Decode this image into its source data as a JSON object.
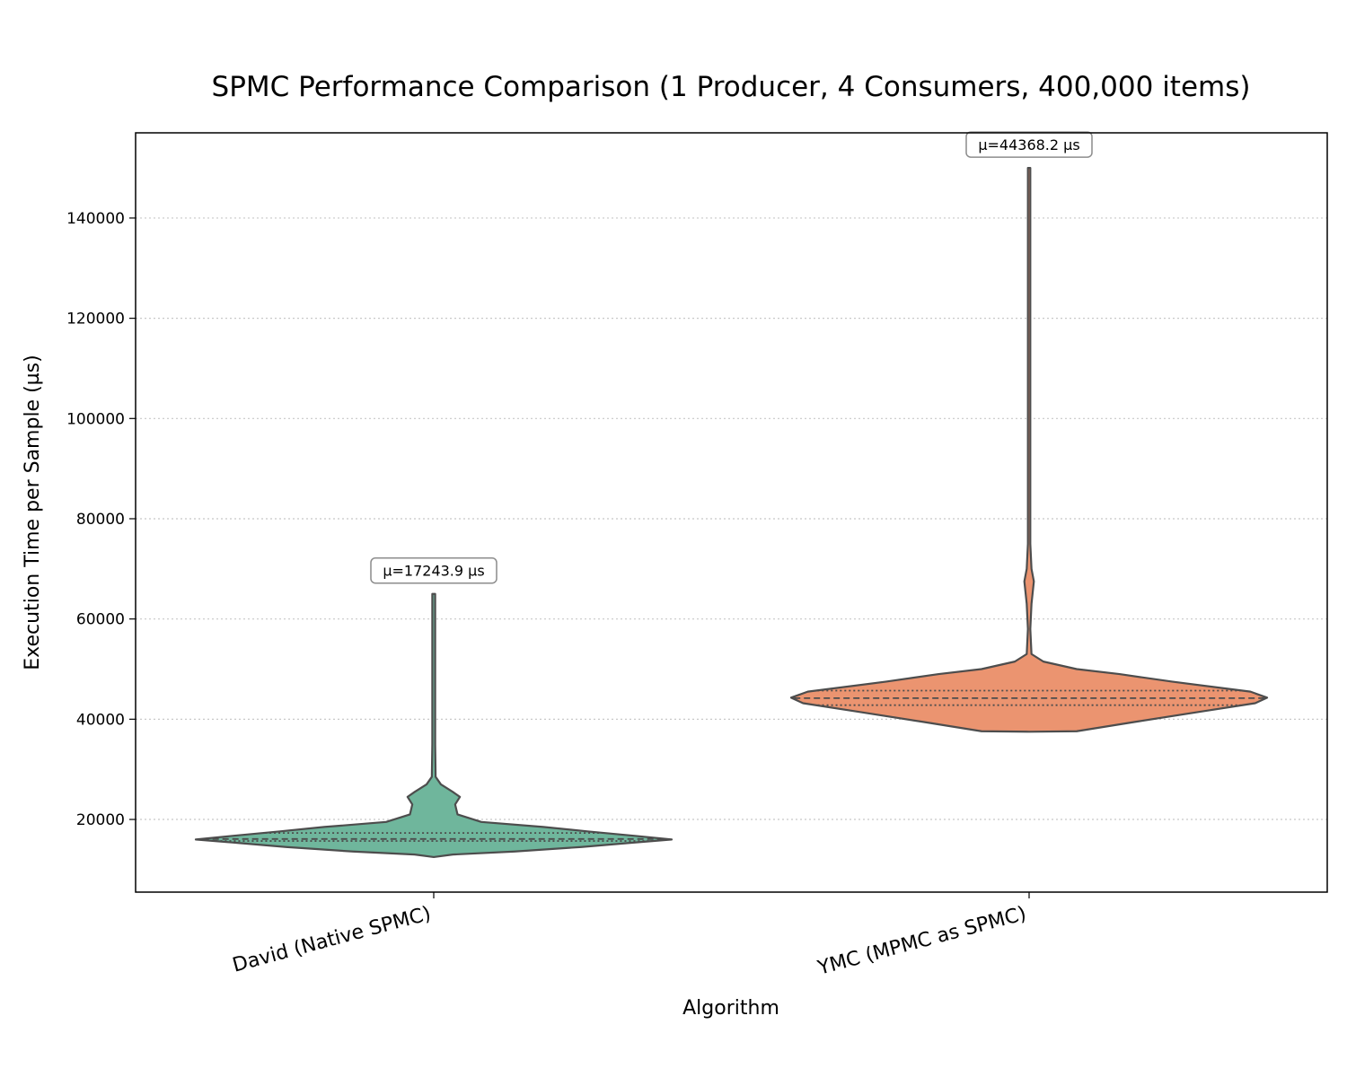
{
  "chart_data": {
    "type": "violin",
    "title": "SPMC Performance Comparison (1 Producer, 4 Consumers, 400,000 items)",
    "xlabel": "Algorithm",
    "ylabel": "Execution Time per Sample (µs)",
    "ylim": [
      5500,
      157000
    ],
    "yticks": [
      20000,
      40000,
      60000,
      80000,
      100000,
      120000,
      140000
    ],
    "ytick_labels": [
      "20000",
      "40000",
      "60000",
      "80000",
      "100000",
      "120000",
      "140000"
    ],
    "grid": "y-dotted",
    "categories": [
      "David (Native SPMC)",
      "YMC (MPMC as SPMC)"
    ],
    "series": [
      {
        "category": "David (Native SPMC)",
        "color": "#6fb69c",
        "mean_label": "μ=17243.9 µs",
        "mean": 17243.9,
        "min": 12500,
        "max": 65000,
        "quartiles": [
          15700,
          16100,
          17300
        ],
        "profile": [
          [
            12500,
            0.0
          ],
          [
            13000,
            0.08
          ],
          [
            13600,
            0.34
          ],
          [
            14500,
            0.62
          ],
          [
            15300,
            0.82
          ],
          [
            16000,
            1.0
          ],
          [
            16700,
            0.85
          ],
          [
            17600,
            0.65
          ],
          [
            18500,
            0.46
          ],
          [
            19500,
            0.2
          ],
          [
            21000,
            0.1
          ],
          [
            23000,
            0.09
          ],
          [
            24500,
            0.11
          ],
          [
            25500,
            0.08
          ],
          [
            27000,
            0.03
          ],
          [
            28500,
            0.008
          ],
          [
            35000,
            0.006
          ],
          [
            65000,
            0.006
          ]
        ]
      },
      {
        "category": "YMC (MPMC as SPMC)",
        "color": "#eb9470",
        "mean_label": "μ=44368.2 µs",
        "mean": 44368.2,
        "min": 37500,
        "max": 150000,
        "quartiles": [
          42800,
          44200,
          45700
        ],
        "profile": [
          [
            37500,
            0.0
          ],
          [
            37600,
            0.2
          ],
          [
            39500,
            0.45
          ],
          [
            41500,
            0.72
          ],
          [
            43200,
            0.95
          ],
          [
            44300,
            1.0
          ],
          [
            45500,
            0.93
          ],
          [
            47500,
            0.6
          ],
          [
            49000,
            0.38
          ],
          [
            50000,
            0.2
          ],
          [
            51500,
            0.06
          ],
          [
            53000,
            0.01
          ],
          [
            58000,
            0.005
          ],
          [
            63000,
            0.01
          ],
          [
            67500,
            0.02
          ],
          [
            70000,
            0.01
          ],
          [
            75000,
            0.005
          ],
          [
            150000,
            0.005
          ]
        ]
      }
    ]
  }
}
